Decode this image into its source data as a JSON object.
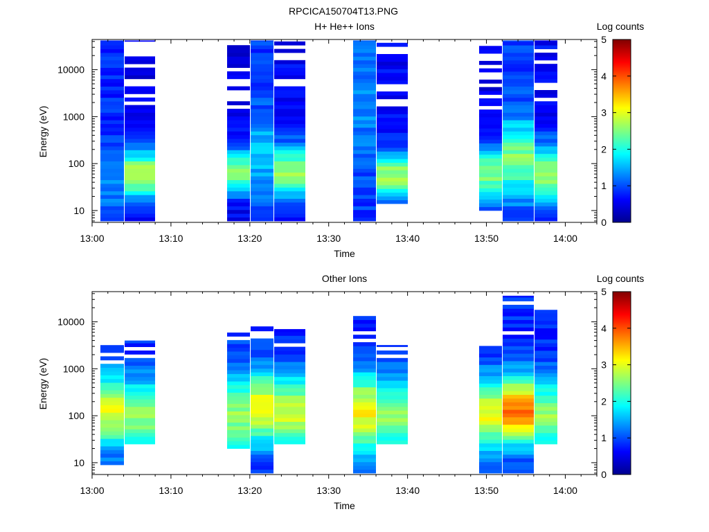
{
  "figure": {
    "title": "RPCICA150704T13.PNG"
  },
  "chart_data": [
    {
      "type": "heatmap",
      "title": "H+ He++ Ions",
      "xlabel": "Time",
      "ylabel": "Energy (eV)",
      "y_scale": "log",
      "y_ticks": [
        "10",
        "100",
        "1000",
        "10000"
      ],
      "x_ticks": [
        "13:00",
        "13:10",
        "13:20",
        "13:30",
        "13:40",
        "13:50",
        "14:00"
      ],
      "colorbar": {
        "label": "Log counts",
        "range": [
          0,
          5
        ],
        "ticks": [
          "0",
          "1",
          "2",
          "3",
          "4",
          "5"
        ]
      },
      "columns": [
        {
          "t_start": "13:01",
          "t_end": "13:04",
          "e_min": 6,
          "e_max": 42000,
          "peak_e": 40,
          "peak_level": 1.3,
          "width": 0.6,
          "edge_level": 0.8,
          "gap_above": 0
        },
        {
          "t_start": "13:04",
          "t_end": "13:08",
          "e_min": 6,
          "e_max": 42000,
          "peak_e": 60,
          "peak_level": 2.7,
          "width": 0.4,
          "edge_level": 0.5,
          "gap_above": 1200
        },
        {
          "t_start": "13:17",
          "t_end": "13:20",
          "e_min": 6,
          "e_max": 36000,
          "peak_e": 70,
          "peak_level": 2.5,
          "width": 0.35,
          "edge_level": 0.5,
          "gap_above": 1500
        },
        {
          "t_start": "13:20",
          "t_end": "13:23",
          "e_min": 6,
          "e_max": 42000,
          "peak_e": 150,
          "peak_level": 1.6,
          "width": 0.6,
          "edge_level": 0.9,
          "gap_above": 0
        },
        {
          "t_start": "13:23",
          "t_end": "13:27",
          "e_min": 6,
          "e_max": 42000,
          "peak_e": 70,
          "peak_level": 2.6,
          "width": 0.4,
          "edge_level": 0.6,
          "gap_above": 1500
        },
        {
          "t_start": "13:33",
          "t_end": "13:36",
          "e_min": 6,
          "e_max": 42000,
          "peak_e": 2000,
          "peak_level": 1.3,
          "width": 0.9,
          "edge_level": 0.9,
          "gap_above": 0
        },
        {
          "t_start": "13:36",
          "t_end": "13:40",
          "e_min": 14,
          "e_max": 42000,
          "peak_e": 55,
          "peak_level": 2.7,
          "width": 0.35,
          "edge_level": 0.6,
          "gap_above": 1500
        },
        {
          "t_start": "13:49",
          "t_end": "13:52",
          "e_min": 10,
          "e_max": 36000,
          "peak_e": 60,
          "peak_level": 2.5,
          "width": 0.45,
          "edge_level": 0.5,
          "gap_above": 1500
        },
        {
          "t_start": "13:52",
          "t_end": "13:56",
          "e_min": 6,
          "e_max": 42000,
          "peak_e": 130,
          "peak_level": 2.5,
          "width": 0.55,
          "edge_level": 0.9,
          "gap_above": 0
        },
        {
          "t_start": "13:56",
          "t_end": "13:59",
          "e_min": 6,
          "e_max": 42000,
          "peak_e": 60,
          "peak_level": 2.6,
          "width": 0.45,
          "edge_level": 0.6,
          "gap_above": 1500
        }
      ]
    },
    {
      "type": "heatmap",
      "title": "Other Ions",
      "xlabel": "Time",
      "ylabel": "Energy (eV)",
      "y_scale": "log",
      "y_ticks": [
        "10",
        "100",
        "1000",
        "10000"
      ],
      "x_ticks": [
        "13:00",
        "13:10",
        "13:20",
        "13:30",
        "13:40",
        "13:50",
        "14:00"
      ],
      "colorbar": {
        "label": "Log counts",
        "range": [
          0,
          5
        ],
        "ticks": [
          "0",
          "1",
          "2",
          "3",
          "4",
          "5"
        ]
      },
      "columns": [
        {
          "t_start": "13:01",
          "t_end": "13:04",
          "e_min": 9,
          "e_max": 3700,
          "peak_e": 130,
          "peak_level": 3.0,
          "width": 0.55,
          "edge_level": 0.8,
          "gap_above": 1200
        },
        {
          "t_start": "13:04",
          "t_end": "13:08",
          "e_min": 25,
          "e_max": 4000,
          "peak_e": 100,
          "peak_level": 2.6,
          "width": 0.55,
          "edge_level": 0.8,
          "gap_above": 1500
        },
        {
          "t_start": "13:17",
          "t_end": "13:20",
          "e_min": 20,
          "e_max": 6500,
          "peak_e": 100,
          "peak_level": 2.6,
          "width": 0.6,
          "edge_level": 0.9,
          "gap_above": 2500
        },
        {
          "t_start": "13:20",
          "t_end": "13:23",
          "e_min": 6,
          "e_max": 8000,
          "peak_e": 150,
          "peak_level": 3.1,
          "width": 0.55,
          "edge_level": 0.8,
          "gap_above": 3500
        },
        {
          "t_start": "13:23",
          "t_end": "13:27",
          "e_min": 25,
          "e_max": 7000,
          "peak_e": 120,
          "peak_level": 2.9,
          "width": 0.55,
          "edge_level": 0.8,
          "gap_above": 2500
        },
        {
          "t_start": "13:33",
          "t_end": "13:36",
          "e_min": 6,
          "e_max": 21000,
          "peak_e": 120,
          "peak_level": 3.1,
          "width": 0.6,
          "edge_level": 0.8,
          "gap_above": 4000
        },
        {
          "t_start": "13:36",
          "t_end": "13:40",
          "e_min": 25,
          "e_max": 3200,
          "peak_e": 100,
          "peak_level": 2.6,
          "width": 0.55,
          "edge_level": 1.0,
          "gap_above": 800
        },
        {
          "t_start": "13:49",
          "t_end": "13:52",
          "e_min": 6,
          "e_max": 3400,
          "peak_e": 110,
          "peak_level": 3.0,
          "width": 0.55,
          "edge_level": 0.8,
          "gap_above": 1800
        },
        {
          "t_start": "13:52",
          "t_end": "13:56",
          "e_min": 6,
          "e_max": 36000,
          "peak_e": 130,
          "peak_level": 3.8,
          "width": 0.5,
          "edge_level": 0.8,
          "gap_above": 5000
        },
        {
          "t_start": "13:56",
          "t_end": "13:59",
          "e_min": 25,
          "e_max": 18000,
          "peak_e": 100,
          "peak_level": 2.6,
          "width": 0.55,
          "edge_level": 0.8,
          "gap_above": 3000
        }
      ]
    }
  ]
}
